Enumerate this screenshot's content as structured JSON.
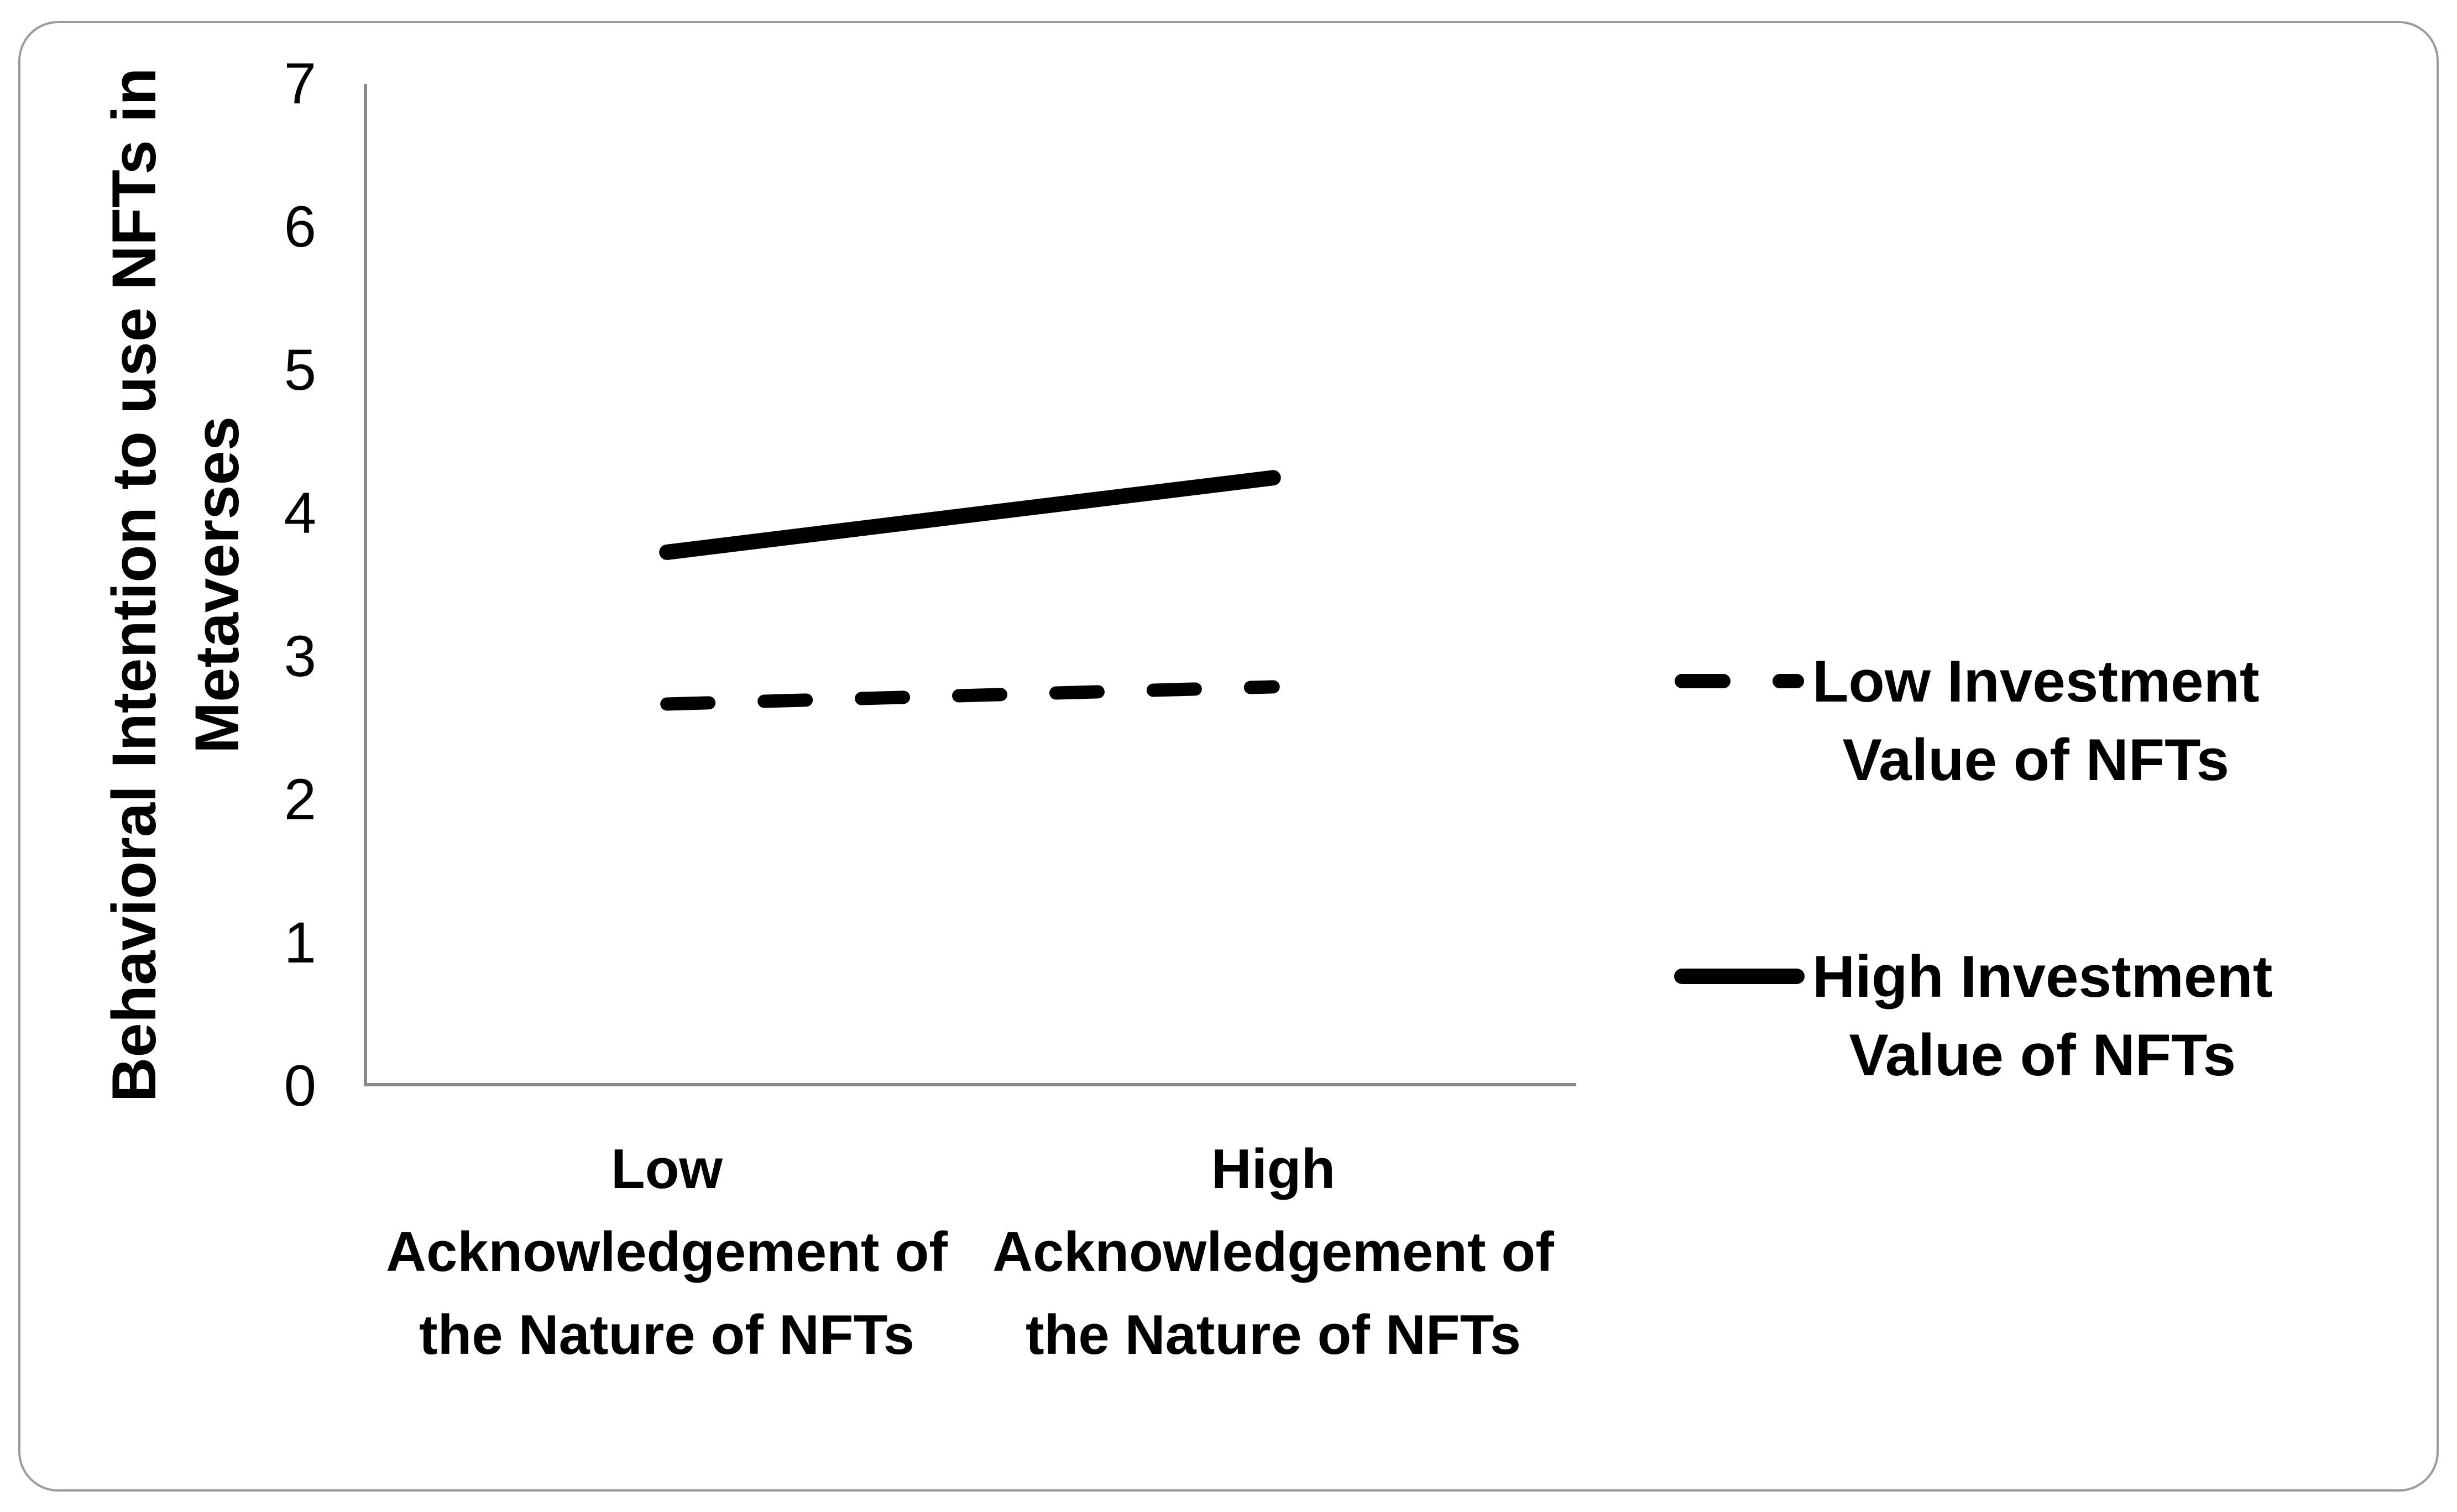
{
  "figure": {
    "background_color": "#ffffff",
    "border_color": "#9b9b9b",
    "axis_color": "#8a8a8a",
    "line_color": "#000000"
  },
  "chart_data": {
    "type": "line",
    "title": "",
    "xlabel": "",
    "ylabel": "Behavioral Intention to use NFTs in Metaverses",
    "ylabel_lines": [
      "Behavioral Intention to use NFTs in",
      "Metaverses"
    ],
    "ylim": [
      0,
      7
    ],
    "y_ticks": [
      0,
      1,
      2,
      3,
      4,
      5,
      6,
      7
    ],
    "grid": false,
    "categories": [
      "Low Acknowledgement of the Nature of NFTs",
      "High Acknowledgement of the Nature of NFTs"
    ],
    "categories_lines": [
      [
        "Low",
        "Acknowledgement of",
        "the Nature of NFTs"
      ],
      [
        "High",
        "Acknowledgement of",
        "the Nature of NFTs"
      ]
    ],
    "series": [
      {
        "name": "Low Investment Value of NFTs",
        "style": "dashed",
        "color": "#000000",
        "values": [
          2.67,
          2.79
        ]
      },
      {
        "name": "High Investment Value of NFTs",
        "style": "solid",
        "color": "#000000",
        "values": [
          3.73,
          4.25
        ]
      }
    ],
    "legend": {
      "position": "right",
      "items": [
        {
          "lines": [
            "Low Investment",
            "Value of NFTs"
          ],
          "style": "dashed"
        },
        {
          "lines": [
            "High Investment",
            "Value of NFTs"
          ],
          "style": "solid"
        }
      ]
    }
  }
}
